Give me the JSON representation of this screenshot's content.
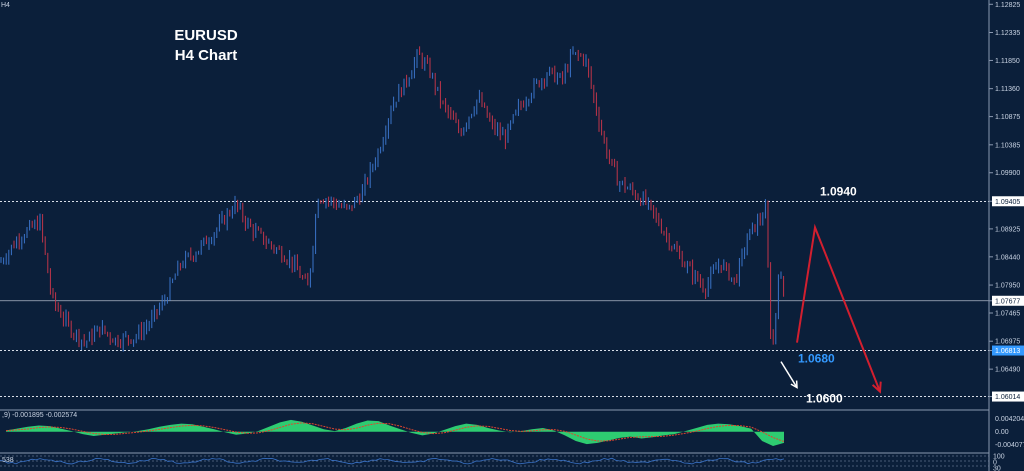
{
  "chart": {
    "symbol": "EURUSD",
    "timeframe": "H4 Chart",
    "corner_label": "H4"
  },
  "colors": {
    "background": "#0b1f3a",
    "axis_text": "#c9d3e3",
    "bull": "#3a73c8",
    "bear": "#c0354a",
    "forecast": "#d21f2f",
    "highlight_blue": "#3399ff",
    "histogram": "#2ecc71",
    "signal": "#e0452e"
  },
  "chart_data": [
    {
      "type": "line",
      "title": "EURUSD\nH4 Chart",
      "ylim": [
        1.0585,
        1.1283
      ],
      "y_ticks": [
        "1.12825",
        "1.12335",
        "1.11850",
        "1.11360",
        "1.10875",
        "1.10385",
        "1.09900",
        "1.09405",
        "1.08925",
        "1.08440",
        "1.07950",
        "1.07677",
        "1.07465",
        "1.06975",
        "1.06813",
        "1.06490",
        "1.06014"
      ],
      "price_points": [
        [
          0,
          1.0835
        ],
        [
          20,
          1.088
        ],
        [
          40,
          1.0905
        ],
        [
          52,
          1.077
        ],
        [
          70,
          1.072
        ],
        [
          85,
          1.0695
        ],
        [
          100,
          1.072
        ],
        [
          115,
          1.07
        ],
        [
          135,
          1.0705
        ],
        [
          150,
          1.073
        ],
        [
          165,
          1.077
        ],
        [
          180,
          1.083
        ],
        [
          200,
          1.086
        ],
        [
          218,
          1.0895
        ],
        [
          235,
          1.0935
        ],
        [
          250,
          1.0895
        ],
        [
          270,
          1.0865
        ],
        [
          290,
          1.084
        ],
        [
          308,
          1.079
        ],
        [
          318,
          1.095
        ],
        [
          332,
          1.094
        ],
        [
          348,
          1.0925
        ],
        [
          362,
          1.0955
        ],
        [
          380,
          1.1035
        ],
        [
          392,
          1.111
        ],
        [
          405,
          1.1145
        ],
        [
          418,
          1.1195
        ],
        [
          430,
          1.1165
        ],
        [
          442,
          1.111
        ],
        [
          460,
          1.106
        ],
        [
          478,
          1.112
        ],
        [
          492,
          1.107
        ],
        [
          505,
          1.105
        ],
        [
          518,
          1.11
        ],
        [
          532,
          1.1135
        ],
        [
          548,
          1.1165
        ],
        [
          562,
          1.115
        ],
        [
          572,
          1.1195
        ],
        [
          585,
          1.119
        ],
        [
          595,
          1.111
        ],
        [
          606,
          1.103
        ],
        [
          618,
          1.0975
        ],
        [
          630,
          1.096
        ],
        [
          645,
          1.094
        ],
        [
          660,
          1.09
        ],
        [
          675,
          1.0855
        ],
        [
          690,
          1.082
        ],
        [
          705,
          1.079
        ],
        [
          720,
          1.0835
        ],
        [
          735,
          1.08
        ],
        [
          748,
          1.088
        ],
        [
          758,
          1.0905
        ],
        [
          766,
          1.0925
        ],
        [
          770,
          1.072
        ],
        [
          774,
          1.069
        ],
        [
          778,
          1.082
        ],
        [
          784,
          1.078
        ]
      ],
      "levels": [
        {
          "value": 1.094,
          "label": "1.0940",
          "axis_label": "1.09405"
        },
        {
          "value": 1.07677,
          "label": "",
          "axis_label": "1.07677"
        },
        {
          "value": 1.06813,
          "label": "1.0680",
          "axis_label": "1.06813"
        },
        {
          "value": 1.06014,
          "label": "1.0600",
          "axis_label": "1.06014"
        }
      ],
      "forecast_path": [
        [
          797,
          1.0695
        ],
        [
          815,
          1.0895
        ],
        [
          880,
          1.061
        ]
      ],
      "down_arrow": [
        [
          781,
          1.0662
        ],
        [
          797,
          1.0617
        ]
      ]
    },
    {
      "type": "bar",
      "title": "",
      "indicator_label": ",9) -0.001895 -0.002574",
      "ylim": [
        -0.0062,
        0.006
      ],
      "y_ticks": [
        "0.004204",
        "0.00",
        "-0.004077"
      ],
      "histogram_values": [
        0.0004,
        0.001,
        0.0016,
        0.002,
        0.0018,
        0.001,
        0.0002,
        -0.0008,
        -0.0014,
        -0.001,
        -0.0006,
        -0.0002,
        0.0002,
        0.0008,
        0.0016,
        0.0022,
        0.0026,
        0.0024,
        0.0016,
        0.0008,
        -0.0002,
        -0.001,
        -0.0006,
        0.0002,
        0.0016,
        0.003,
        0.0038,
        0.0032,
        0.002,
        0.0008,
        0.0002,
        0.0012,
        0.0026,
        0.0036,
        0.0034,
        0.002,
        0.0008,
        -0.0004,
        -0.0012,
        -0.0006,
        0.0006,
        0.0018,
        0.0026,
        0.0022,
        0.0012,
        0.0004,
        -0.0002,
        0.0002,
        0.0008,
        0.0012,
        0.0004,
        -0.0012,
        -0.003,
        -0.004,
        -0.0036,
        -0.0028,
        -0.002,
        -0.0016,
        -0.0022,
        -0.0018,
        -0.0012,
        -0.0008,
        0.0002,
        0.0012,
        0.0022,
        0.0026,
        0.0024,
        0.0018,
        0.001,
        -0.003,
        -0.0046,
        -0.0036
      ]
    },
    {
      "type": "line",
      "title": "",
      "indicator_label": "538",
      "y_ticks": [
        "100",
        "0",
        "30"
      ]
    }
  ]
}
